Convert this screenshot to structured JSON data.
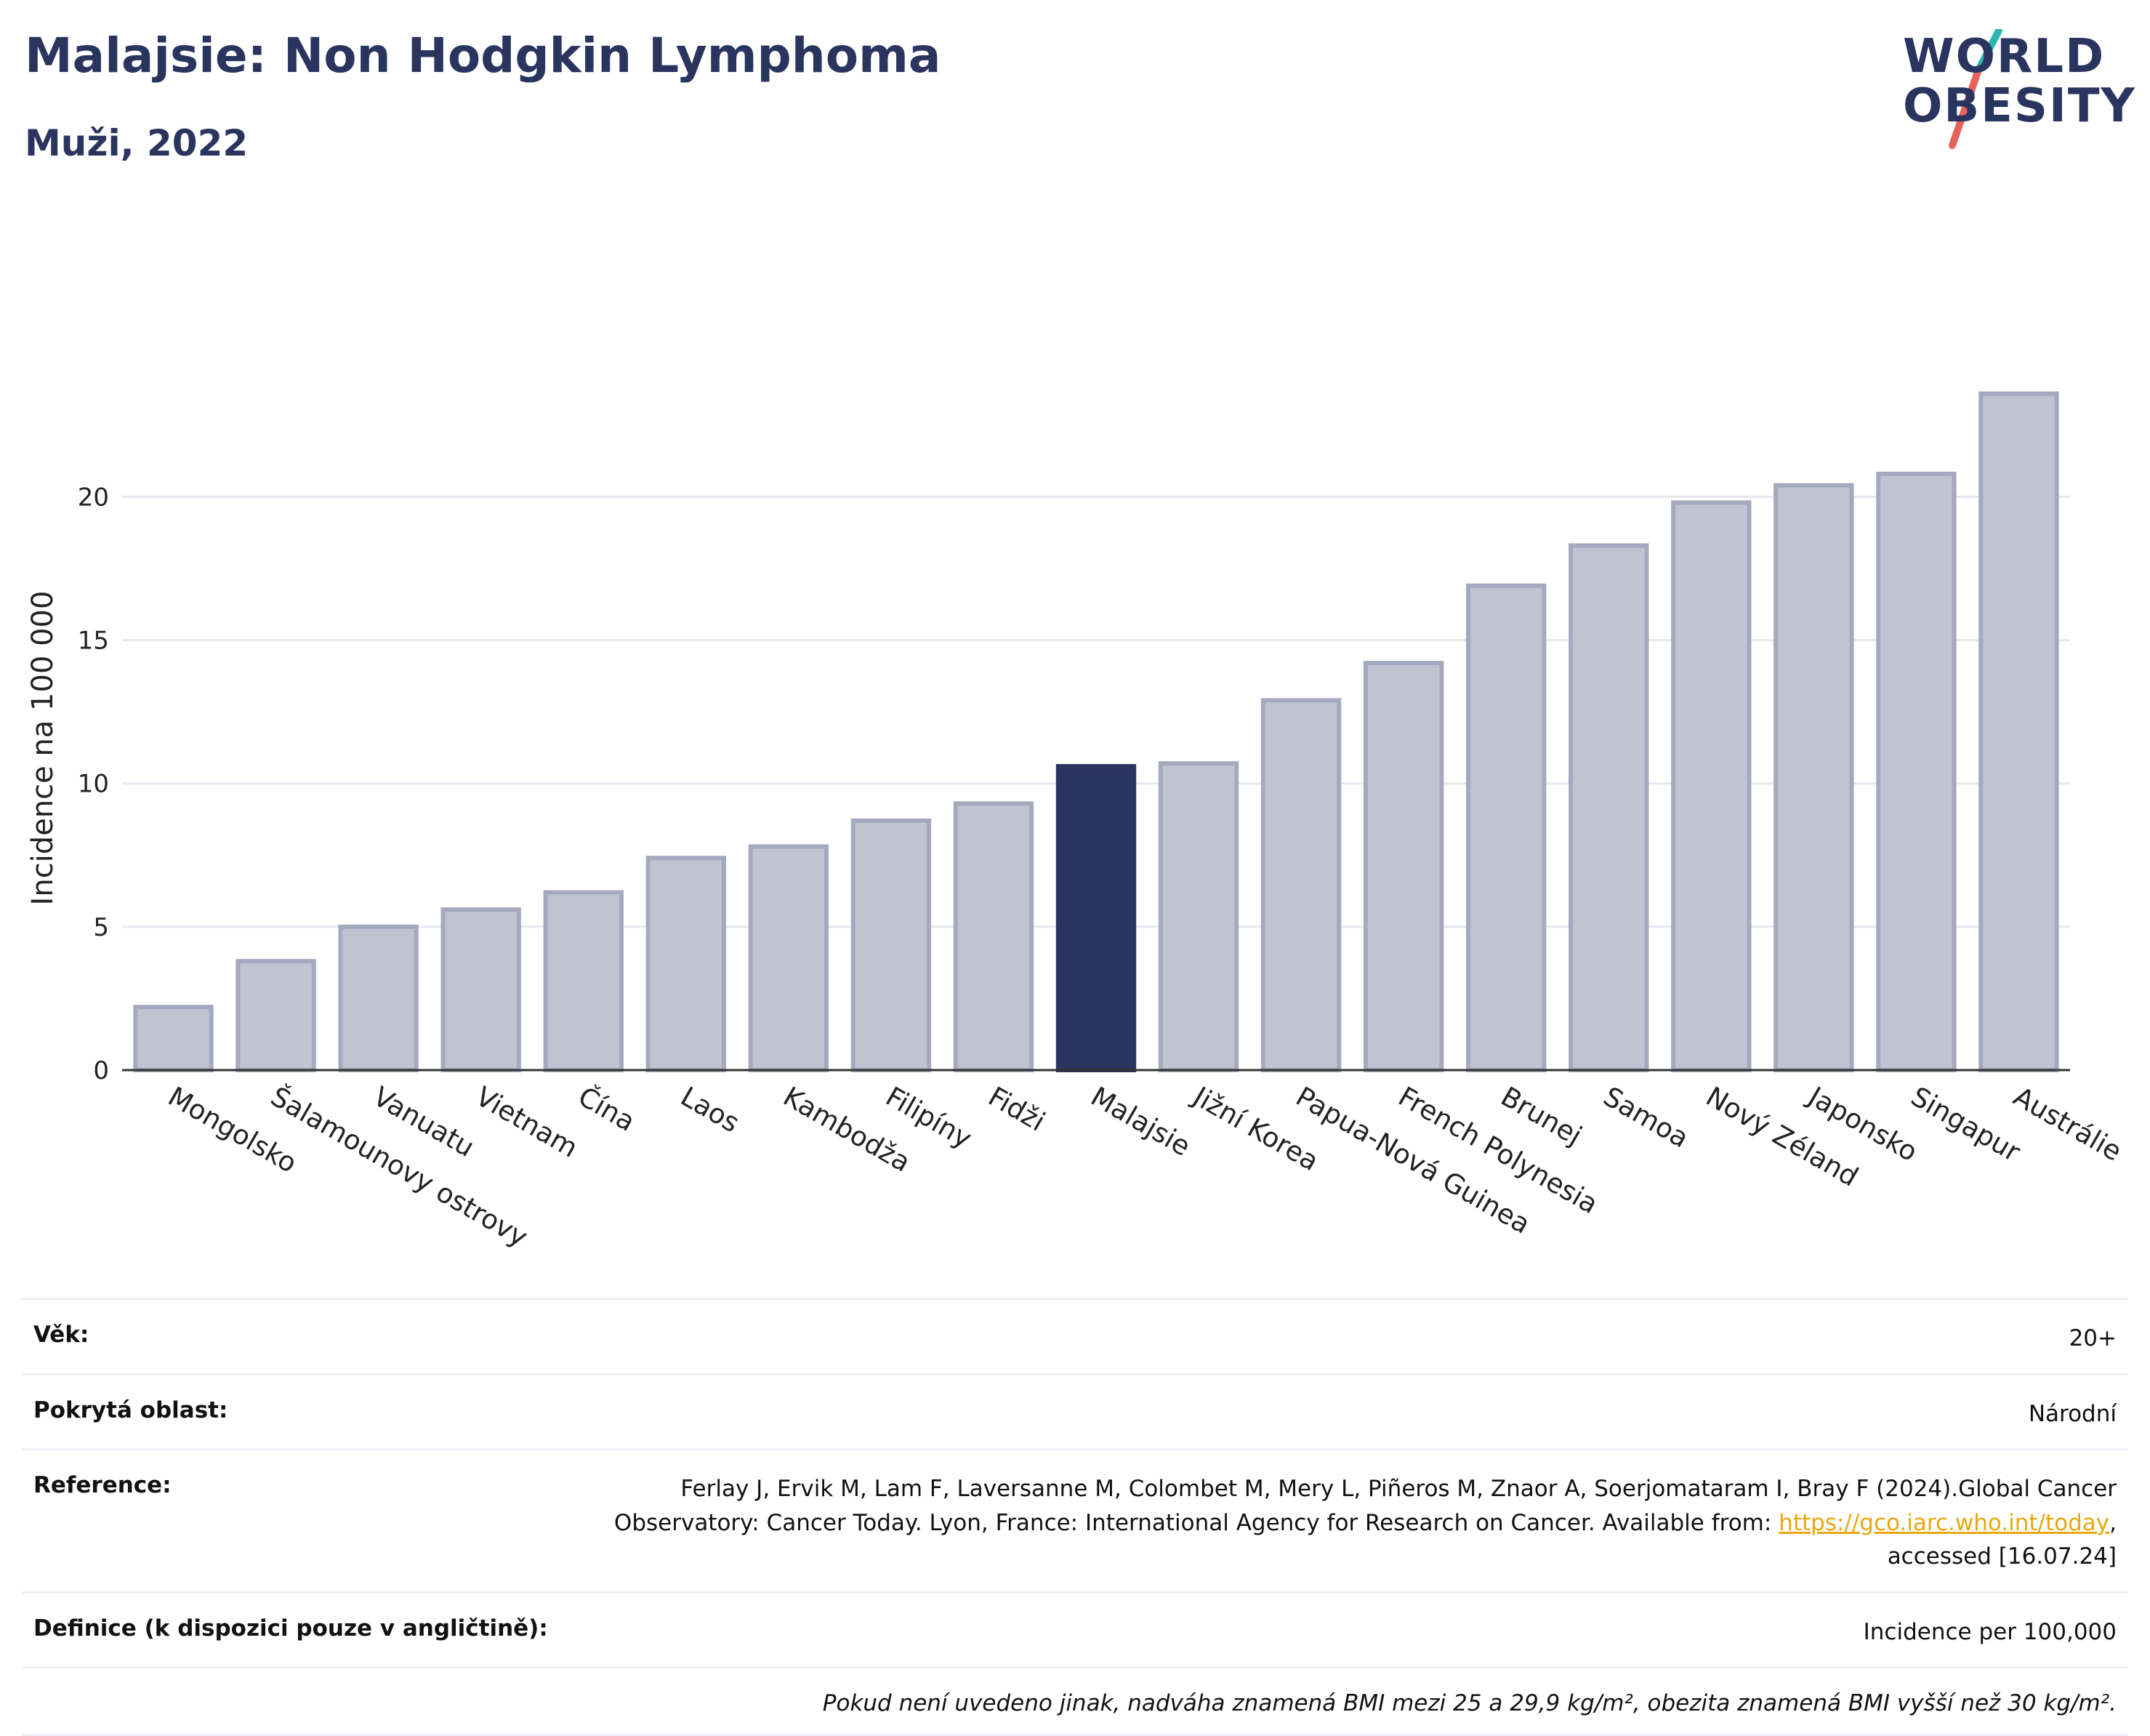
{
  "header": {
    "title": "Malajsie: Non Hodgkin Lymphoma",
    "subtitle": "Muži, 2022"
  },
  "logo": {
    "line1": "WORLD",
    "line2": "OBESITY",
    "colors": {
      "text": "#2a355f",
      "slash_top": "#2bb8b0",
      "slash_bottom": "#e8615a"
    }
  },
  "colors": {
    "bar": "#c0c3d0",
    "bar_border": "#a4a9bf",
    "highlight": "#2a355f",
    "grid": "#e6e8ef",
    "axis": "#333333"
  },
  "chart_data": {
    "type": "bar",
    "title": "",
    "xlabel": "",
    "ylabel": "Incidence na 100 000",
    "ylim": [
      0,
      24.5
    ],
    "yticks": [
      0,
      5,
      10,
      15,
      20
    ],
    "grid": true,
    "highlight": "Malajsie",
    "categories": [
      "Mongolsko",
      "Šalamounovy ostrovy",
      "Vanuatu",
      "Vietnam",
      "Čína",
      "Laos",
      "Kambodža",
      "Filipíny",
      "Fidži",
      "Malajsie",
      "Jižní Korea",
      "Papua-Nová Guinea",
      "French Polynesia",
      "Brunej",
      "Samoa",
      "Nový Zéland",
      "Japonsko",
      "Singapur",
      "Austrálie"
    ],
    "values": [
      2.2,
      3.8,
      5.0,
      5.6,
      6.2,
      7.4,
      7.8,
      8.7,
      9.3,
      10.6,
      10.7,
      12.9,
      14.2,
      16.9,
      18.3,
      19.8,
      20.4,
      20.8,
      23.6
    ]
  },
  "info": {
    "rows": [
      {
        "label": "Věk:",
        "value": "20+"
      },
      {
        "label": "Pokrytá oblast:",
        "value": "Národní"
      },
      {
        "label": "Reference:",
        "value_pre": "Ferlay J, Ervik M, Lam F, Laversanne M, Colombet M, Mery L, Piñeros M, Znaor A, Soerjomataram I, Bray F (2024).Global Cancer Observatory: Cancer Today. Lyon, France: International Agency for Research on Cancer. Available from: ",
        "link": "https://gco.iarc.who.int/today",
        "value_post": ", accessed [16.07.24]"
      },
      {
        "label": "Definice (k dispozici pouze v angličtině):",
        "value": "Incidence per 100,000"
      }
    ],
    "note": "Pokud není uvedeno jinak, nadváha znamená BMI mezi 25 a 29,9 kg/m², obezita znamená BMI vyšší než 30 kg/m²."
  }
}
